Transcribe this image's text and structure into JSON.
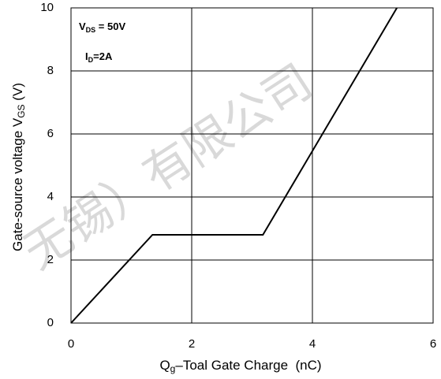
{
  "chart_data": {
    "type": "line",
    "x": [
      0,
      1.35,
      3.18,
      5.4
    ],
    "series": [
      {
        "values": [
          0,
          2.8,
          2.8,
          10
        ],
        "color": "#000000"
      }
    ],
    "xlim": [
      0,
      6
    ],
    "xticks": [
      0,
      2,
      4,
      6
    ],
    "ylim": [
      0,
      10
    ],
    "yticks": [
      0,
      2,
      4,
      6,
      8,
      10
    ],
    "grid": true,
    "xlabel": {
      "main": "Q",
      "sub": "g",
      "rest": "–Toal Gate Charge  (nC)"
    },
    "ylabel": {
      "main": "Gate-source voltage V",
      "sub": "GS",
      "rest": " (V)"
    },
    "annotations": [
      {
        "main": "V",
        "sub": "DS",
        "rest": " = 50V"
      },
      {
        "main": "I",
        "sub": "D",
        "rest": "=2A"
      }
    ],
    "watermark": "无锡）有限公司"
  }
}
